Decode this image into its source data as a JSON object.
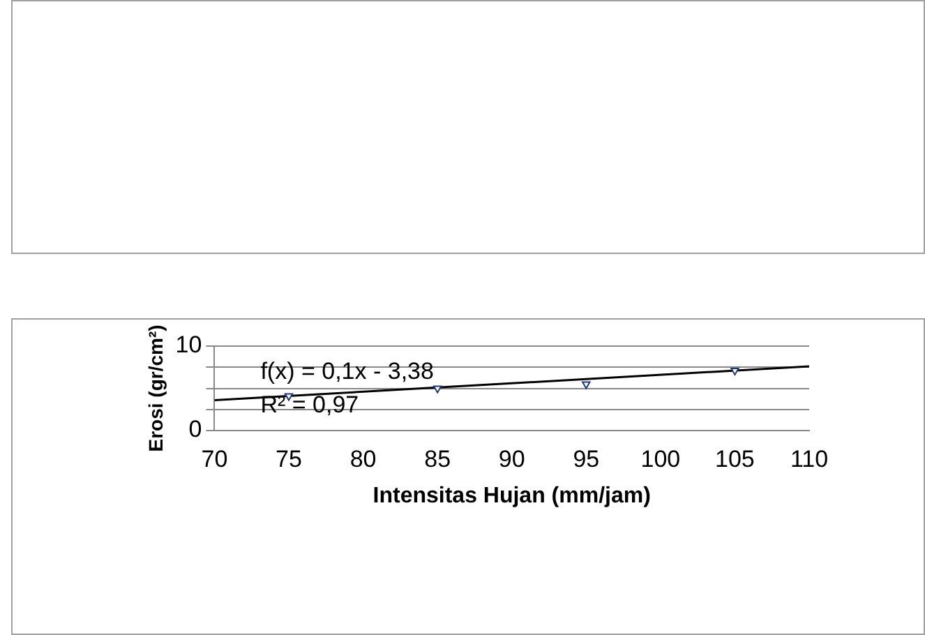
{
  "chart_data": {
    "type": "scatter",
    "xlabel": "Intensitas Hujan (mm/jam)",
    "ylabel": "Erosi (gr/cm²)",
    "x": [
      75,
      85,
      95,
      105
    ],
    "series": [
      {
        "type": "scatter",
        "color": "#1f3a7a",
        "marker": "triangle",
        "values": [
          4.1,
          5.0,
          5.5,
          7.1
        ]
      },
      {
        "type": "line",
        "color": "#000000",
        "marker": "none",
        "x": [
          70,
          110
        ],
        "values": [
          3.6,
          7.6
        ]
      }
    ],
    "xlim": [
      70,
      110
    ],
    "xticks": [
      70,
      75,
      80,
      85,
      90,
      95,
      100,
      105,
      110
    ],
    "ylim": [
      0,
      10
    ],
    "yticks": [
      0,
      {
        "value": 2.5,
        "label": null
      },
      {
        "value": 5,
        "label": null
      },
      {
        "value": 7.5,
        "label": null
      },
      10
    ],
    "grid": "y",
    "legend": false,
    "annotations": [
      "f(x) = 0,1x - 3,38",
      "R² = 0,97"
    ]
  }
}
